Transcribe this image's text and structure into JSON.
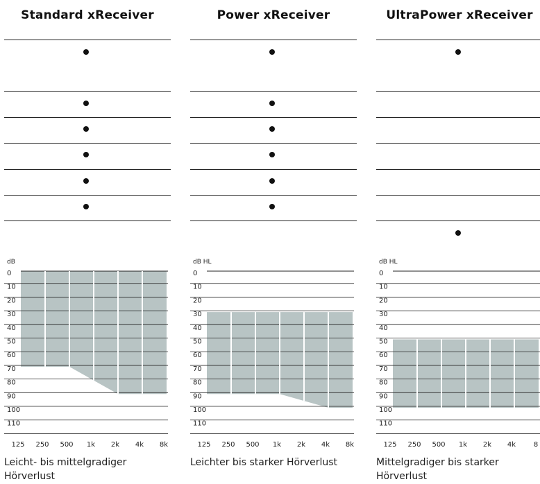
{
  "chart_data": [
    {
      "type": "area",
      "title": "Standard xReceiver",
      "ylabel": "dB",
      "x_ticks": [
        "125",
        "250",
        "500",
        "1k",
        "2k",
        "4k",
        "8k"
      ],
      "y_ticks": [
        0,
        10,
        20,
        30,
        40,
        50,
        60,
        70,
        80,
        90,
        100,
        110
      ],
      "ylim": [
        0,
        110
      ],
      "y_inverted": true,
      "grid": true,
      "fitting_range": {
        "upper_db": [
          0,
          0,
          0,
          0,
          0,
          0,
          0
        ],
        "lower_db": [
          70,
          70,
          70,
          80,
          90,
          90,
          90
        ]
      },
      "features": [
        true,
        true,
        true,
        true,
        true,
        true,
        false
      ],
      "caption": "Leicht- bis mittelgradiger Hörverlust"
    },
    {
      "type": "area",
      "title": "Power xReceiver",
      "ylabel": "dB  HL",
      "x_ticks": [
        "125",
        "250",
        "500",
        "1k",
        "2k",
        "4k",
        "8k"
      ],
      "y_ticks": [
        0,
        10,
        20,
        30,
        40,
        50,
        60,
        70,
        80,
        90,
        100,
        110
      ],
      "ylim": [
        0,
        110
      ],
      "y_inverted": true,
      "grid": true,
      "fitting_range": {
        "upper_db": [
          30,
          30,
          30,
          30,
          30,
          30,
          30
        ],
        "lower_db": [
          90,
          90,
          90,
          90,
          95,
          100,
          100
        ]
      },
      "features": [
        true,
        true,
        true,
        true,
        true,
        true,
        false
      ],
      "caption": "Leichter bis starker Hörverlust"
    },
    {
      "type": "area",
      "title": "UltraPower xReceiver",
      "ylabel": "dB  HL",
      "x_ticks": [
        "125",
        "250",
        "500",
        "1k",
        "2k",
        "4k",
        "8"
      ],
      "y_ticks": [
        0,
        10,
        20,
        30,
        40,
        50,
        60,
        70,
        80,
        90,
        100,
        110
      ],
      "ylim": [
        0,
        110
      ],
      "y_inverted": true,
      "grid": true,
      "fitting_range": {
        "upper_db": [
          50,
          50,
          50,
          50,
          50,
          50,
          50
        ],
        "lower_db": [
          100,
          100,
          100,
          100,
          100,
          100,
          100
        ]
      },
      "features": [
        true,
        false,
        false,
        false,
        false,
        false,
        true
      ],
      "caption": "Mittelgradiger bis starker Hörverlust"
    }
  ],
  "colors": {
    "fill": "#b8c4c4",
    "line": "#222222",
    "divider": "#ffffff"
  }
}
